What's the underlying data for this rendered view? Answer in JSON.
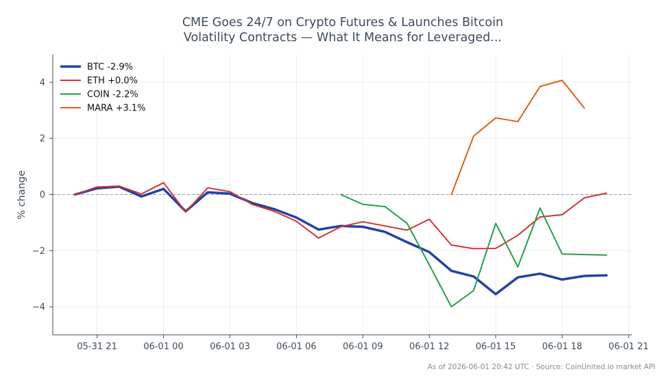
{
  "chart_data": {
    "type": "line",
    "title_lines": [
      "CME Goes 24/7 on Crypto Futures & Launches Bitcoin",
      "Volatility Contracts — What It Means for Leveraged..."
    ],
    "ylabel": "% change",
    "xlabel": "",
    "x_ticks": [
      "05-31 21",
      "06-01 00",
      "06-01 03",
      "06-01 06",
      "06-01 09",
      "06-01 12",
      "06-01 15",
      "06-01 18",
      "06-01 21"
    ],
    "x_ticks_hours": [
      21,
      24,
      27,
      30,
      33,
      36,
      39,
      42,
      45
    ],
    "xlim_hours": [
      19.0,
      45.15
    ],
    "ylim": [
      -5,
      5
    ],
    "y_ticks": [
      -4,
      -2,
      0,
      2,
      4
    ],
    "y_tick_labels": [
      "−4",
      "−2",
      "0",
      "2",
      "4"
    ],
    "x_unit": "hours after 2026-05-31 00:00",
    "zero_line": true,
    "grid": true,
    "legend_position": "top-left",
    "series": [
      {
        "name": "BTC -2.9%",
        "color": "#2241a3",
        "width": 3.5,
        "points": [
          [
            20,
            0
          ],
          [
            21,
            0.22
          ],
          [
            22,
            0.28
          ],
          [
            23,
            -0.07
          ],
          [
            24,
            0.2
          ],
          [
            25,
            -0.6
          ],
          [
            26,
            0.08
          ],
          [
            27,
            0.03
          ],
          [
            28,
            -0.3
          ],
          [
            29,
            -0.52
          ],
          [
            30,
            -0.82
          ],
          [
            31,
            -1.25
          ],
          [
            32,
            -1.12
          ],
          [
            33,
            -1.15
          ],
          [
            34,
            -1.33
          ],
          [
            35,
            -1.7
          ],
          [
            36,
            -2.05
          ],
          [
            37,
            -2.72
          ],
          [
            38,
            -2.92
          ],
          [
            39,
            -3.55
          ],
          [
            40,
            -2.95
          ],
          [
            41,
            -2.82
          ],
          [
            42,
            -3.03
          ],
          [
            43,
            -2.9
          ],
          [
            44,
            -2.88
          ]
        ]
      },
      {
        "name": "ETH +0.0%",
        "color": "#d23333",
        "width": 2,
        "points": [
          [
            20,
            0
          ],
          [
            21,
            0.27
          ],
          [
            22,
            0.3
          ],
          [
            23,
            0.02
          ],
          [
            24,
            0.42
          ],
          [
            25,
            -0.62
          ],
          [
            26,
            0.24
          ],
          [
            27,
            0.1
          ],
          [
            28,
            -0.35
          ],
          [
            29,
            -0.6
          ],
          [
            30,
            -0.95
          ],
          [
            31,
            -1.55
          ],
          [
            32,
            -1.15
          ],
          [
            33,
            -0.97
          ],
          [
            34,
            -1.12
          ],
          [
            35,
            -1.27
          ],
          [
            36,
            -0.88
          ],
          [
            37,
            -1.8
          ],
          [
            38,
            -1.93
          ],
          [
            39,
            -1.92
          ],
          [
            40,
            -1.45
          ],
          [
            41,
            -0.8
          ],
          [
            42,
            -0.72
          ],
          [
            43,
            -0.12
          ],
          [
            44,
            0.05
          ]
        ]
      },
      {
        "name": "COIN -2.2%",
        "color": "#23a04a",
        "width": 2,
        "points": [
          [
            32,
            0
          ],
          [
            33,
            -0.35
          ],
          [
            34,
            -0.43
          ],
          [
            35,
            -1.03
          ],
          [
            36,
            -2.5
          ],
          [
            37,
            -4.0
          ],
          [
            38,
            -3.42
          ],
          [
            39,
            -1.03
          ],
          [
            40,
            -2.58
          ],
          [
            41,
            -0.48
          ],
          [
            42,
            -2.12
          ],
          [
            44,
            -2.16
          ]
        ]
      },
      {
        "name": "MARA +3.1%",
        "color": "#e05e1a",
        "width": 2,
        "points": [
          [
            37,
            0
          ],
          [
            38,
            2.08
          ],
          [
            39,
            2.73
          ],
          [
            40,
            2.6
          ],
          [
            41,
            3.85
          ],
          [
            42,
            4.07
          ],
          [
            43,
            3.08
          ]
        ]
      }
    ]
  },
  "footnote": "As of 2026-06-01 20:42 UTC · Source: CoinUnited.io market API"
}
